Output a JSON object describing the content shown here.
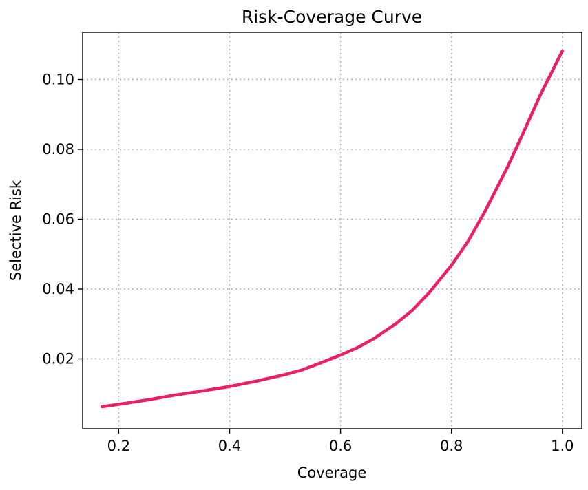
{
  "chart_data": {
    "type": "line",
    "title": "Risk-Coverage Curve",
    "xlabel": "Coverage",
    "ylabel": "Selective Risk",
    "xlim": [
      0.135,
      1.035
    ],
    "ylim": [
      0.0,
      0.1135
    ],
    "xticks": [
      0.2,
      0.4,
      0.6,
      0.8,
      1.0
    ],
    "xtick_labels": [
      "0.2",
      "0.4",
      "0.6",
      "0.8",
      "1.0"
    ],
    "yticks": [
      0.02,
      0.04,
      0.06,
      0.08,
      0.1
    ],
    "ytick_labels": [
      "0.02",
      "0.04",
      "0.06",
      "0.08",
      "0.10"
    ],
    "grid": true,
    "series": [
      {
        "color": "#e8206a",
        "x": [
          0.17,
          0.2,
          0.25,
          0.3,
          0.35,
          0.4,
          0.45,
          0.5,
          0.53,
          0.56,
          0.6,
          0.63,
          0.66,
          0.7,
          0.73,
          0.76,
          0.8,
          0.83,
          0.86,
          0.9,
          0.93,
          0.96,
          1.0
        ],
        "y": [
          0.0063,
          0.007,
          0.0082,
          0.0096,
          0.0108,
          0.0121,
          0.0137,
          0.0155,
          0.0168,
          0.0186,
          0.0211,
          0.0232,
          0.0258,
          0.0301,
          0.034,
          0.039,
          0.0468,
          0.0537,
          0.0621,
          0.0746,
          0.0849,
          0.0955,
          0.1082
        ]
      }
    ]
  }
}
